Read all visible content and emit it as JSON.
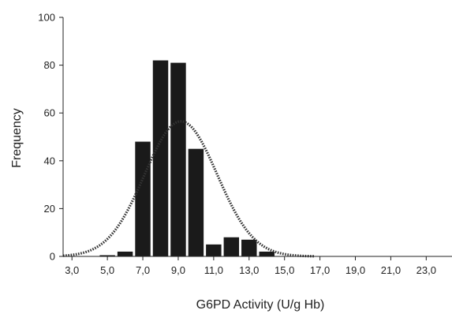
{
  "chart_data": {
    "type": "bar",
    "xlabel": "G6PD Activity (U/g Hb)",
    "ylabel": "Frequency",
    "xlim": [
      2.5,
      24.5
    ],
    "ylim": [
      0,
      100
    ],
    "x_ticks": [
      3,
      5,
      7,
      9,
      11,
      13,
      15,
      17,
      19,
      21,
      23
    ],
    "x_tick_labels": [
      "3,0",
      "5,0",
      "7,0",
      "9,0",
      "11,0",
      "13,0",
      "15,0",
      "17,0",
      "19,0",
      "21,0",
      "23,0"
    ],
    "y_ticks": [
      0,
      20,
      40,
      60,
      80,
      100
    ],
    "y_tick_labels": [
      "0",
      "20",
      "40",
      "60",
      "80",
      "100"
    ],
    "bar_width": 1.0,
    "bars": [
      {
        "x": 5.0,
        "value": 0.5
      },
      {
        "x": 6.0,
        "value": 2
      },
      {
        "x": 7.0,
        "value": 48
      },
      {
        "x": 8.0,
        "value": 82
      },
      {
        "x": 9.0,
        "value": 81
      },
      {
        "x": 10.0,
        "value": 45
      },
      {
        "x": 11.0,
        "value": 5
      },
      {
        "x": 12.0,
        "value": 8
      },
      {
        "x": 13.0,
        "value": 7
      },
      {
        "x": 14.0,
        "value": 2
      }
    ],
    "normal_curve": {
      "mean": 9.15,
      "sd": 2.05,
      "peak": 56.5,
      "x_range": [
        2.5,
        16.7
      ],
      "style": "dotted"
    },
    "grid": false,
    "colors": {
      "bar": "#1a1a1a",
      "curve": "#333333",
      "axis": "#222222"
    }
  }
}
